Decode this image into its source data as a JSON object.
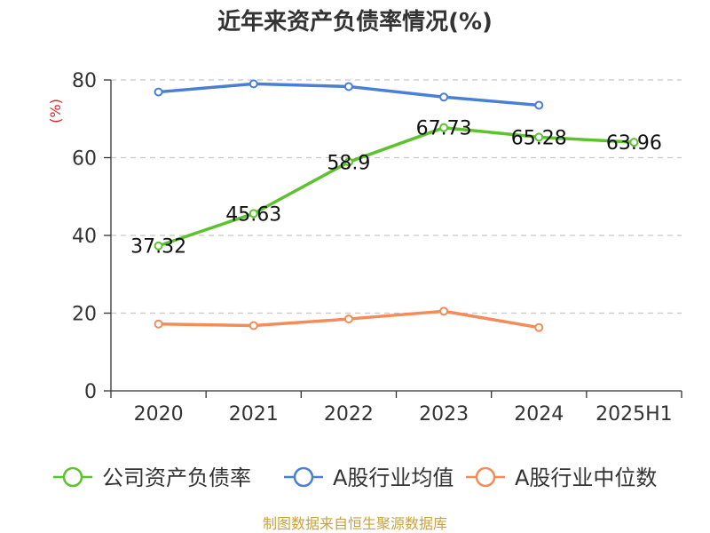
{
  "chart_data": {
    "type": "line",
    "title": "近年来资产负债率情况(%)",
    "ylabel": "(%)",
    "xlabel": "",
    "ylim": [
      0,
      80
    ],
    "yticks": [
      0,
      20,
      40,
      60,
      80
    ],
    "categories": [
      "2020",
      "2021",
      "2022",
      "2023",
      "2024",
      "2025H1"
    ],
    "grid": "horizontal-dashed",
    "legend_position": "bottom",
    "series": [
      {
        "name": "公司资产负债率",
        "color": "#5cc22d",
        "values": [
          37.32,
          45.63,
          58.9,
          67.73,
          65.28,
          63.96
        ],
        "labels": [
          "37.32",
          "45.63",
          "58.9",
          "67.73",
          "65.28",
          "63.96"
        ]
      },
      {
        "name": "A股行业均值",
        "color": "#4a7fd6",
        "values": [
          76.9,
          79.0,
          78.3,
          75.6,
          73.5,
          null
        ]
      },
      {
        "name": "A股行业中位数",
        "color": "#f28c5a",
        "values": [
          17.2,
          16.8,
          18.5,
          20.5,
          16.3,
          null
        ]
      }
    ],
    "source": "制图数据来自恒生聚源数据库"
  }
}
